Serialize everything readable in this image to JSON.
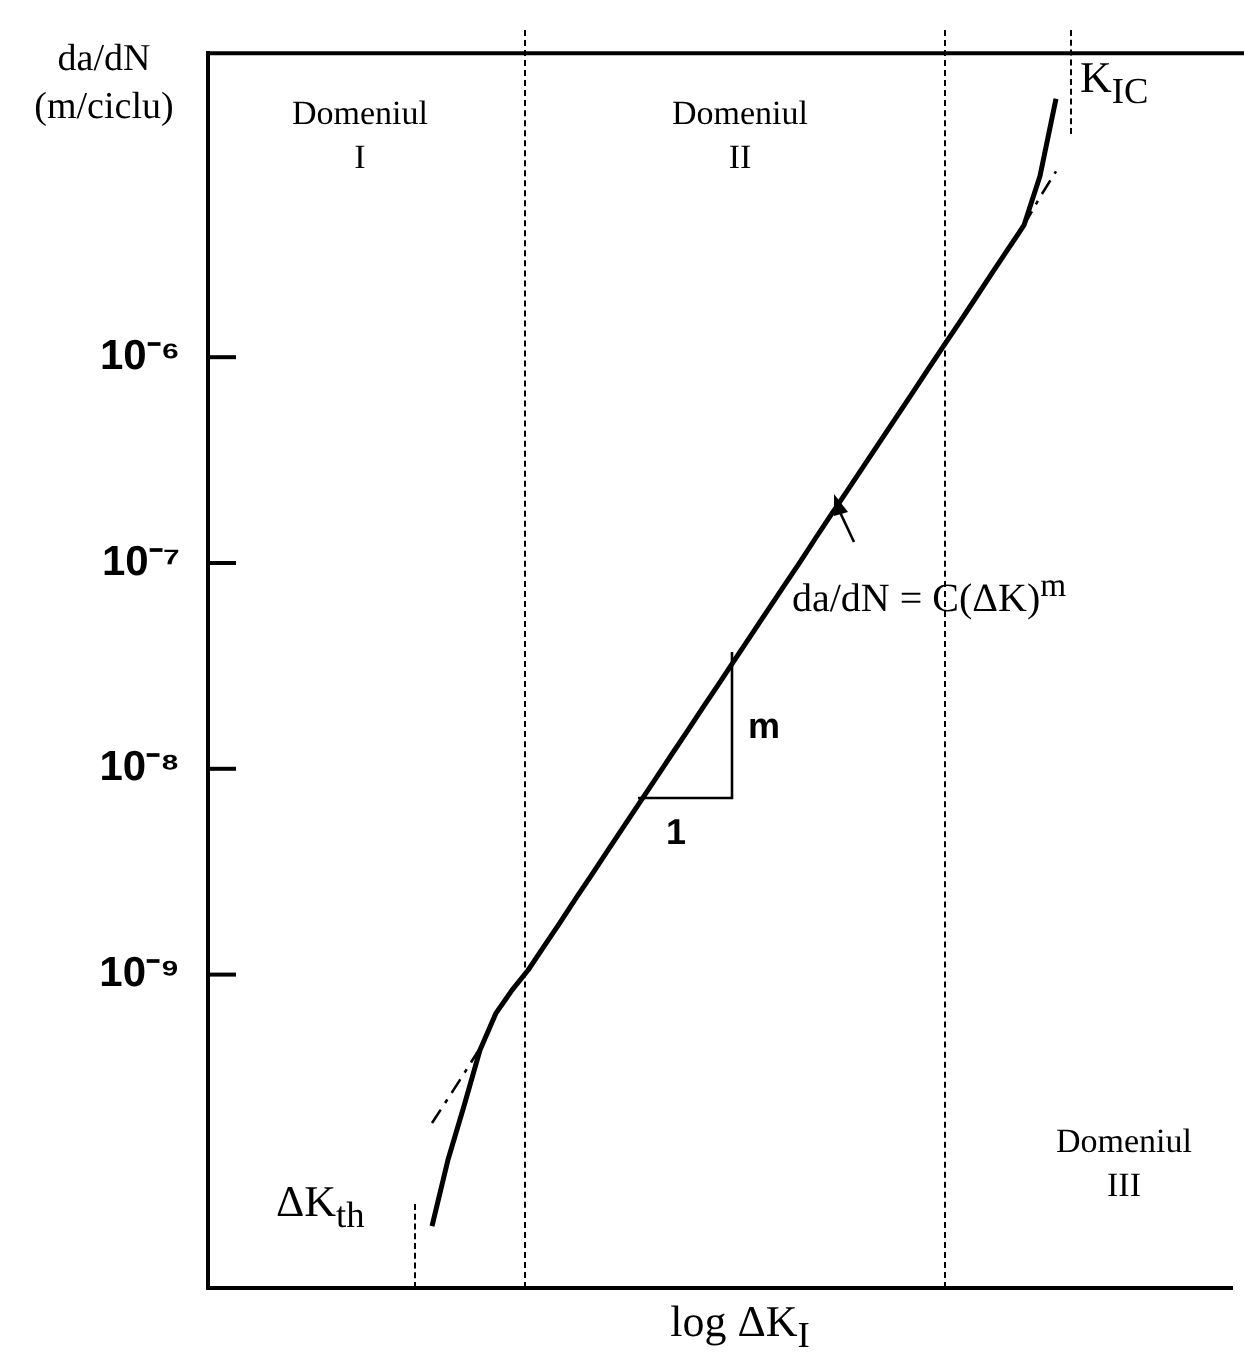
{
  "chart_data": {
    "type": "line",
    "xlabel": "log ΔK$_{I}$",
    "ylabel": "da/dN (m/ciclu)",
    "categories": [
      null,
      null,
      null,
      null,
      null,
      null,
      null,
      null,
      null,
      null,
      null,
      null,
      null,
      null,
      null,
      null,
      null,
      null,
      null,
      null,
      null,
      null,
      null,
      null,
      null,
      null,
      null,
      null,
      null,
      null,
      null,
      null,
      null,
      null,
      null,
      null,
      null,
      null,
      null,
      null,
      null,
      null,
      null,
      null,
      null,
      null,
      null,
      null,
      null,
      null,
      null,
      null,
      null,
      null,
      null,
      null,
      null,
      null,
      null,
      null,
      null,
      null,
      null,
      null,
      null
    ],
    "series": [
      {
        "color": "#000000",
        "line_style": "solid",
        "values": [
          null,
          null,
          null,
          null,
          null,
          null,
          null,
          null,
          null,
          null,
          null,
          null,
          null,
          null,
          6e-11,
          1.26e-10,
          2.3e-10,
          4.3e-10,
          6.5e-10,
          8.4e-10,
          1.05e-09,
          1.37e-09,
          1.79e-09,
          2.35e-09,
          3.07e-09,
          4.02e-09,
          5.26e-09,
          6.89e-09,
          9.01e-09,
          1.18e-08,
          1.54e-08,
          2.02e-08,
          2.64e-08,
          3.46e-08,
          4.53e-08,
          5.92e-08,
          7.75e-08,
          1.01e-07,
          1.33e-07,
          1.74e-07,
          2.27e-07,
          2.97e-07,
          3.89e-07,
          5.09e-07,
          6.66e-07,
          8.72e-07,
          1.14e-06,
          1.49e-06,
          1.95e-06,
          2.56e-06,
          3.35e-06,
          4.38e-06,
          7.6e-06,
          1.8e-05,
          null,
          null,
          null,
          null,
          null,
          null,
          null,
          null,
          null,
          null,
          null
        ]
      },
      {
        "color": "#000000",
        "line_style": "dashed",
        "values": [
          null,
          null,
          null,
          null,
          null,
          null,
          null,
          null,
          null,
          null,
          null,
          null,
          null,
          null,
          1.9e-10,
          2.5e-10,
          3.3e-10,
          4.4e-10,
          null,
          null,
          null,
          null,
          null,
          null,
          null,
          null,
          null,
          null,
          null,
          null,
          null,
          null,
          null,
          null,
          null,
          null,
          null,
          null,
          null,
          null,
          null,
          null,
          null,
          null,
          null,
          null,
          null,
          null,
          null,
          null,
          null,
          null,
          null,
          null,
          null,
          null,
          null,
          null,
          null,
          null,
          null,
          null,
          null,
          null,
          null
        ]
      },
      {
        "color": "#000000",
        "line_style": "dashed",
        "values": [
          null,
          null,
          null,
          null,
          null,
          null,
          null,
          null,
          null,
          null,
          null,
          null,
          null,
          null,
          null,
          null,
          null,
          null,
          null,
          null,
          null,
          null,
          null,
          null,
          null,
          null,
          null,
          null,
          null,
          null,
          null,
          null,
          null,
          null,
          null,
          null,
          null,
          null,
          null,
          null,
          null,
          null,
          null,
          null,
          null,
          null,
          null,
          null,
          null,
          null,
          null,
          4.38e-06,
          6e-06,
          8e-06,
          null,
          null,
          null,
          null,
          null,
          null,
          null,
          null,
          null,
          null,
          null
        ]
      }
    ],
    "log": "y",
    "ylim": [
      3e-11,
      3e-05
    ],
    "yticks": [
      {
        "value": 1e-09,
        "label": "10⁻⁹"
      },
      {
        "value": 1e-08,
        "label": "10⁻⁸"
      },
      {
        "value": 1e-07,
        "label": "10⁻⁷"
      },
      {
        "value": 1e-06,
        "label": "10⁻⁶"
      }
    ],
    "tick_labels": "y",
    "grid": false,
    "legend": false,
    "marker": "none",
    "annotations": [
      "Domeniul I",
      "Domeniul II",
      "Domeniul III",
      "ΔK$_{th}$",
      "K$_{IC}$",
      "da/dN = C(ΔK)$^{m}$",
      "m",
      "1"
    ]
  }
}
